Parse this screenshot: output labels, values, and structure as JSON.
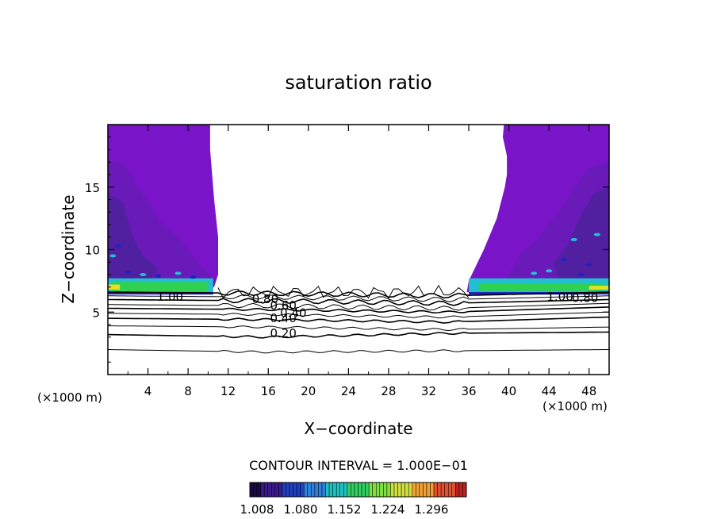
{
  "chart_data": {
    "type": "contour",
    "title": "saturation ratio",
    "xlabel": "X−coordinate",
    "ylabel": "Z−coordinate",
    "x_unit_left": "(×1000 m)",
    "x_unit_right": "(×1000 m)",
    "xlim": [
      0,
      50
    ],
    "ylim": [
      0,
      20
    ],
    "x_ticks": [
      4,
      8,
      12,
      16,
      20,
      24,
      28,
      32,
      36,
      40,
      44,
      48
    ],
    "y_ticks": [
      5,
      10,
      15
    ],
    "contour_interval_text": "CONTOUR INTERVAL = 1.000E−01",
    "contour_labels": [
      "1.00",
      "0.80",
      "0.60",
      "0.40",
      "0.20",
      "0.40",
      "1.00",
      "0.80"
    ],
    "colorbar": {
      "tick_labels": [
        "1.008",
        "1.080",
        "1.152",
        "1.224",
        "1.296"
      ],
      "colors": [
        "#1a0a40",
        "#3a1a8a",
        "#2040c0",
        "#3080e0",
        "#20c0c0",
        "#30d060",
        "#80e040",
        "#d0e040",
        "#f0a030",
        "#e05030",
        "#c02020"
      ]
    },
    "colors": {
      "supersaturated_fill": "#7a14c8",
      "inner_fill": "#6a1ab8",
      "deep_fill": "#5020a0",
      "band_green": "#30d050",
      "band_yellow": "#e8e020",
      "band_cyan": "#20c0d0",
      "band_blue": "#2020c0"
    },
    "contour_levels": [
      {
        "level": "0.10",
        "y": [
          2.0,
          1.8,
          1.9,
          2.0
        ]
      },
      {
        "level": "0.20",
        "y": [
          3.2,
          3.0,
          3.3,
          3.4
        ]
      },
      {
        "level": "0.30",
        "y": [
          3.9,
          3.8,
          3.6,
          3.8
        ]
      },
      {
        "level": "0.40",
        "y": [
          4.5,
          4.4,
          4.2,
          4.6
        ]
      },
      {
        "level": "0.50",
        "y": [
          4.9,
          4.8,
          4.6,
          5.0
        ]
      },
      {
        "level": "0.60",
        "y": [
          5.3,
          5.2,
          5.0,
          5.4
        ]
      },
      {
        "level": "0.70",
        "y": [
          5.6,
          5.5,
          5.3,
          5.7
        ]
      },
      {
        "level": "0.80",
        "y": [
          6.0,
          5.9,
          5.7,
          6.0
        ]
      },
      {
        "level": "0.90",
        "y": [
          6.3,
          6.2,
          6.0,
          6.3
        ]
      },
      {
        "level": "1.00",
        "y": [
          6.6,
          6.5,
          6.3,
          6.6
        ]
      }
    ]
  }
}
